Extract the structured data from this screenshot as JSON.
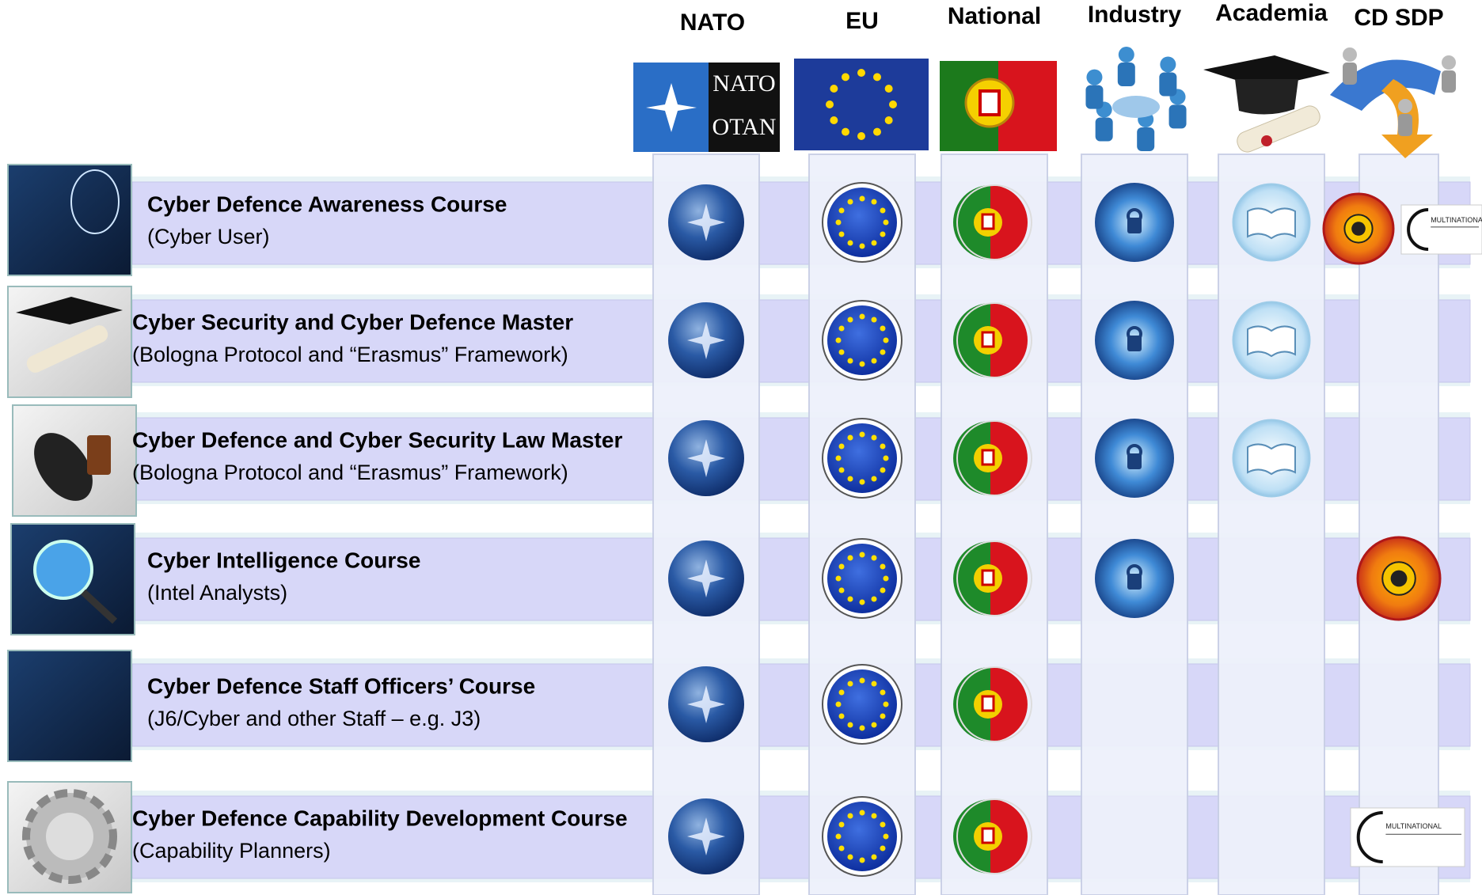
{
  "columns": [
    "NATO",
    "EU",
    "National",
    "Industry",
    "Academia",
    "CD SDP"
  ],
  "nato_flag": {
    "line1": "NATO",
    "line2": "OTAN"
  },
  "logo_text": "MULTINATIONAL",
  "rows": [
    {
      "title": "Cyber Defence Awareness Course",
      "subtitle": "(Cyber User)"
    },
    {
      "title": "Cyber Security and Cyber Defence Master",
      "subtitle": "(Bologna Protocol and “Erasmus” Framework)"
    },
    {
      "title": "Cyber Defence and Cyber Security Law Master",
      "subtitle": "(Bologna Protocol and “Erasmus” Framework)"
    },
    {
      "title": "Cyber Intelligence Course",
      "subtitle": "(Intel Analysts)"
    },
    {
      "title": "Cyber Defence Staff Officers’ Course",
      "subtitle": "(J6/Cyber and other Staff – e.g. J3)"
    },
    {
      "title": "Cyber Defence Capability Development Course",
      "subtitle": "(Capability Planners)"
    }
  ]
}
